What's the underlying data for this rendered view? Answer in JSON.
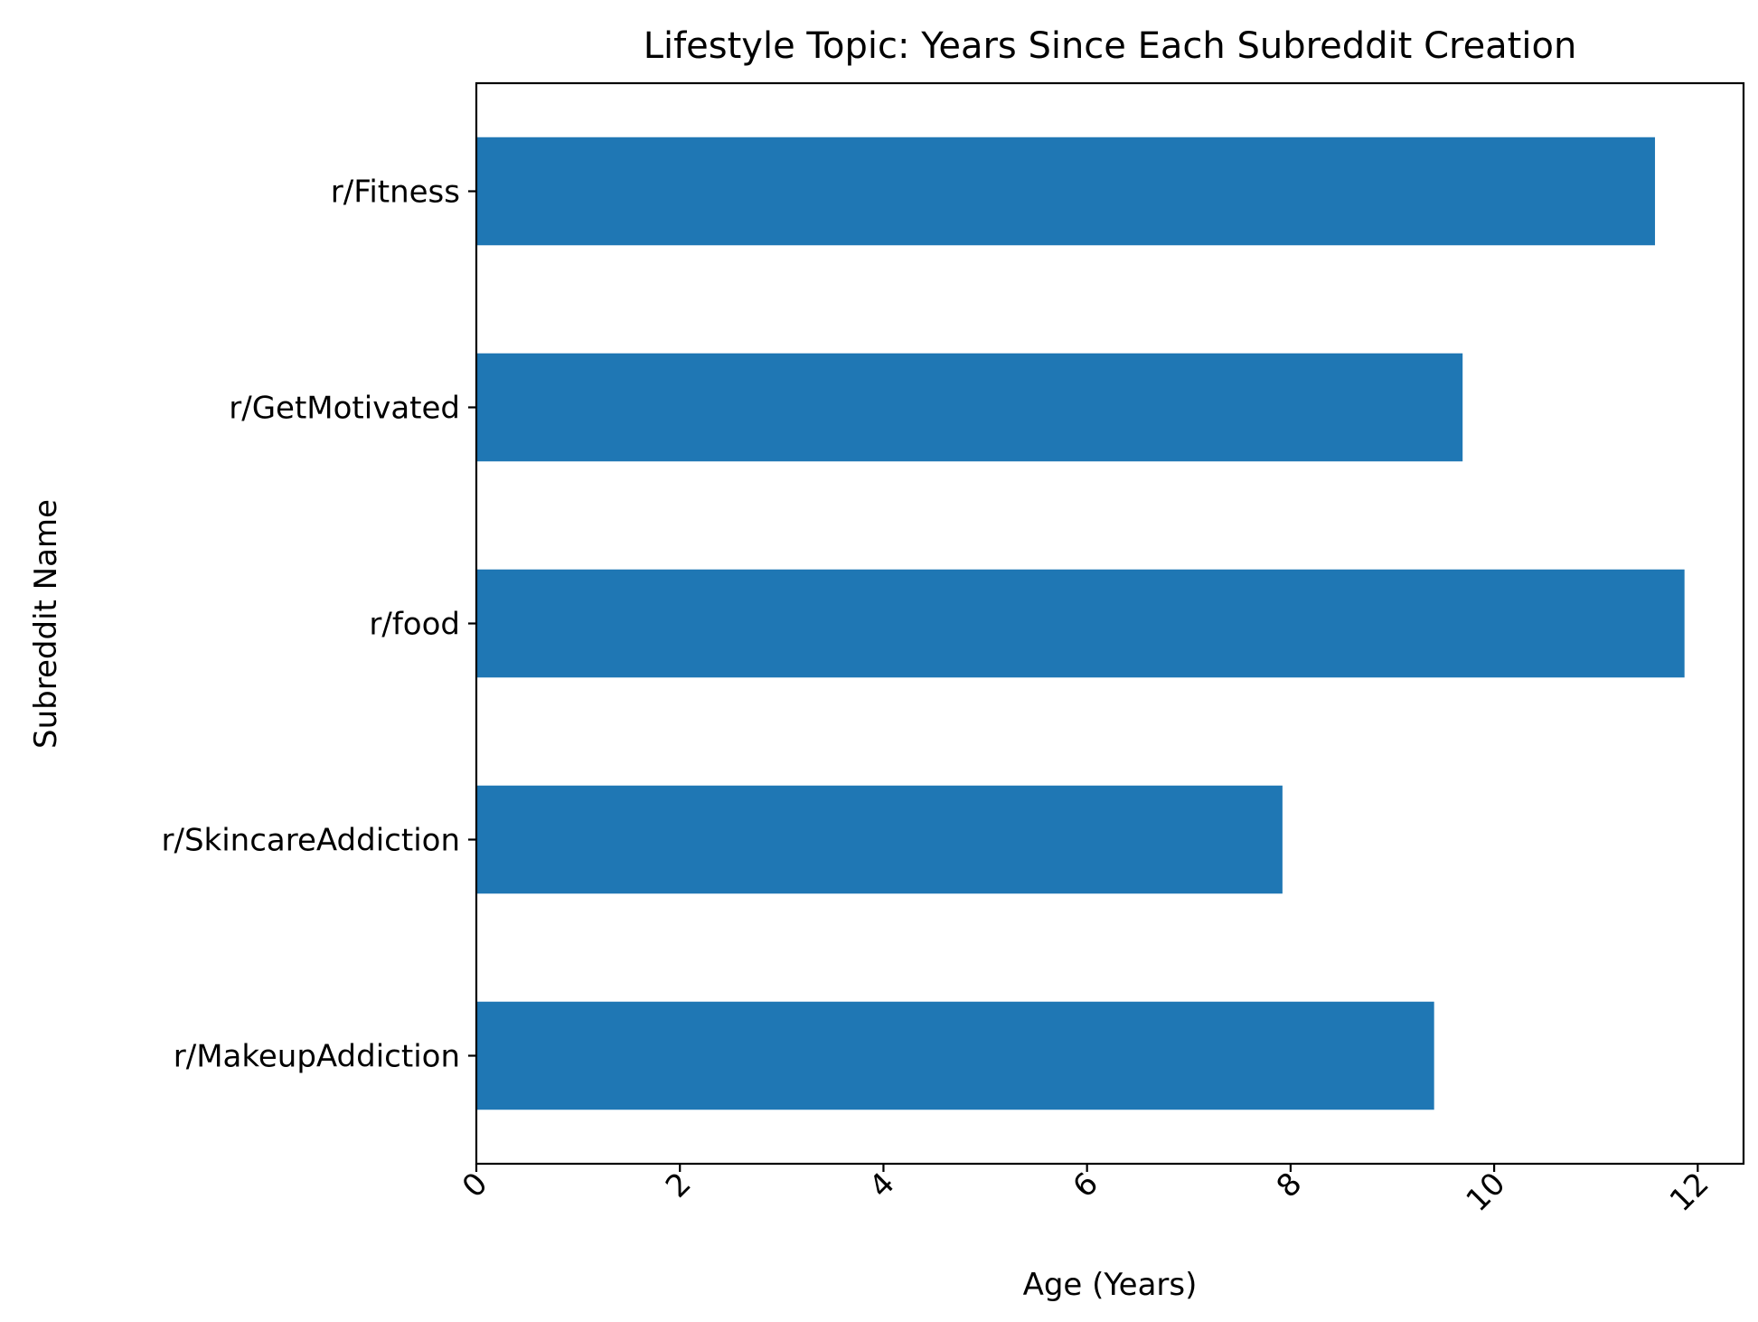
{
  "chart_data": {
    "type": "bar",
    "orientation": "horizontal",
    "title": "Lifestyle Topic: Years Since Each Subreddit Creation",
    "xlabel": "Age (Years)",
    "ylabel": "Subreddit Name",
    "categories": [
      "r/Fitness",
      "r/GetMotivated",
      "r/food",
      "r/SkincareAddiction",
      "r/MakeupAddiction"
    ],
    "values": [
      11.58,
      9.69,
      11.87,
      7.92,
      9.41
    ],
    "xlim": [
      0,
      12.45
    ],
    "xticks": [
      0,
      2,
      4,
      6,
      8,
      10,
      12
    ],
    "xtick_rotation": 45,
    "grid": false,
    "bar_color": "#1f77b4"
  }
}
